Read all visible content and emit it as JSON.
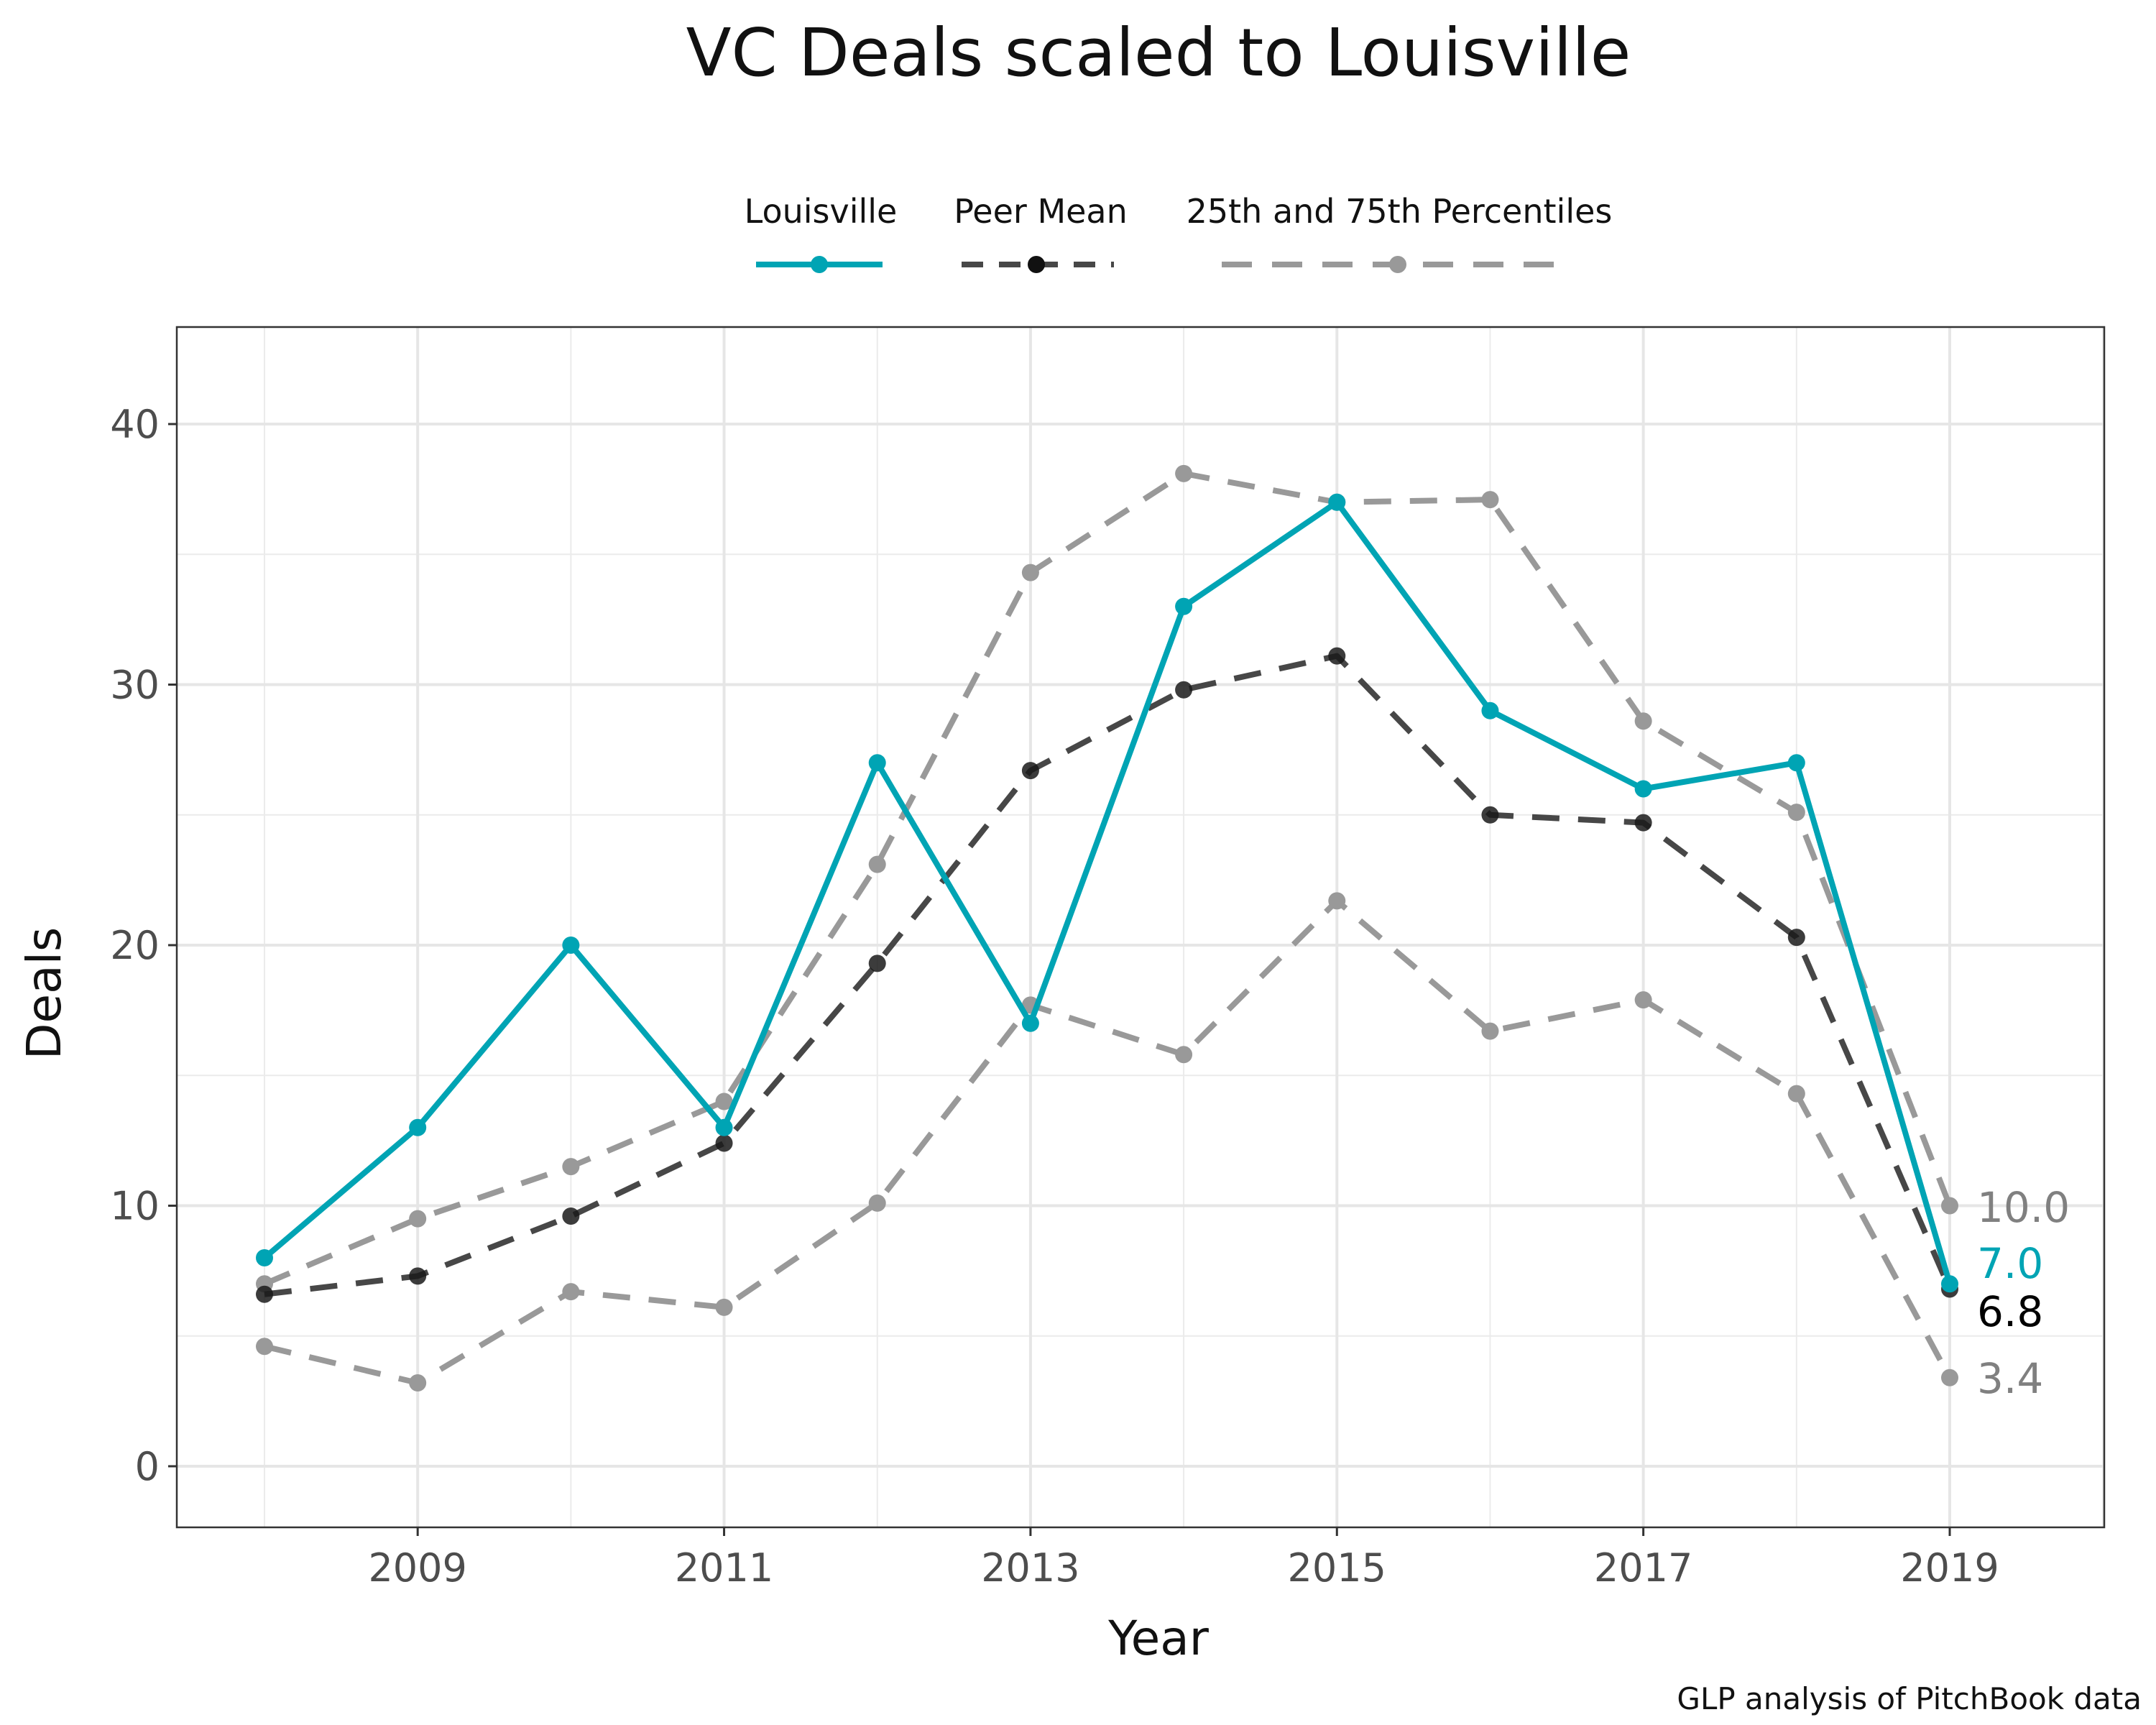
{
  "chart_data": {
    "type": "line",
    "title": "VC Deals scaled to Louisville",
    "xlabel": "Year",
    "ylabel": "Deals",
    "caption": "GLP analysis of PitchBook data",
    "x": [
      2008,
      2009,
      2010,
      2011,
      2012,
      2013,
      2014,
      2015,
      2016,
      2017,
      2018,
      2019
    ],
    "x_ticks": [
      "2009",
      "2011",
      "2013",
      "2015",
      "2017",
      "2019"
    ],
    "y_ticks": [
      "0",
      "10",
      "20",
      "30",
      "40"
    ],
    "xlim": [
      2007.4,
      2020.1
    ],
    "ylim": [
      -2.3,
      43.7
    ],
    "grid": true,
    "legend_position": "top",
    "legend": [
      {
        "label": "Louisville",
        "color": "#00a4b4",
        "dash": "solid"
      },
      {
        "label": "Peer Mean",
        "color": "#333333",
        "dash": "dashed"
      },
      {
        "label": "25th and 75th Percentiles",
        "color": "#999999",
        "dash": "dashed"
      }
    ],
    "series": [
      {
        "key": "p75",
        "color": "#999999",
        "dash": true,
        "values": [
          7.0,
          9.5,
          11.5,
          14.0,
          23.1,
          34.3,
          38.1,
          37.0,
          37.1,
          28.6,
          25.1,
          10.0
        ]
      },
      {
        "key": "p25",
        "color": "#999999",
        "dash": true,
        "values": [
          4.6,
          3.2,
          6.7,
          6.1,
          10.1,
          17.7,
          15.8,
          21.7,
          16.7,
          17.9,
          14.3,
          3.4
        ]
      },
      {
        "key": "mean",
        "color": "#333333",
        "dash": true,
        "values": [
          6.6,
          7.3,
          9.6,
          12.4,
          19.3,
          26.7,
          29.8,
          31.1,
          25.0,
          24.7,
          20.3,
          6.8
        ]
      },
      {
        "key": "louisville",
        "color": "#00a4b4",
        "dash": false,
        "values": [
          8,
          13,
          20,
          13,
          27,
          17,
          33,
          37,
          29,
          26,
          27,
          7
        ]
      }
    ],
    "end_labels": [
      {
        "text": "10.0",
        "value": 10.0,
        "color": "#808080"
      },
      {
        "text": "7.0",
        "value": 7.0,
        "color": "#00a4b4"
      },
      {
        "text": "6.8",
        "value": 6.8,
        "color": "#000000"
      },
      {
        "text": "3.4",
        "value": 3.4,
        "color": "#808080"
      }
    ]
  }
}
